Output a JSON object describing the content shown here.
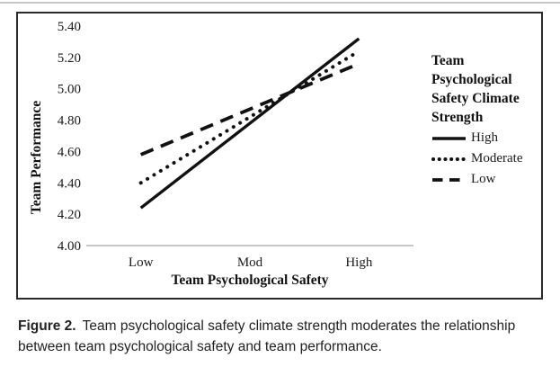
{
  "figure": {
    "caption_label": "Figure 2.",
    "caption_text": "Team psychological safety climate strength moderates the relationship between team psychological safety and team performance."
  },
  "chart_data": {
    "type": "line",
    "title": "",
    "xlabel": "Team Psychological Safety",
    "ylabel": "Team Performance",
    "categories": [
      "Low",
      "Mod",
      "High"
    ],
    "y_ticks": [
      "4.00",
      "4.20",
      "4.40",
      "4.60",
      "4.80",
      "5.00",
      "5.20",
      "5.40"
    ],
    "ylim": [
      4.0,
      5.4
    ],
    "grid": false,
    "baseline_value": 4.0,
    "legend_position": "right",
    "legend_title_lines": [
      "Team",
      "Psychological",
      "Safety Climate",
      "Strength"
    ],
    "series": [
      {
        "name": "High",
        "line_style": "solid",
        "values": [
          4.24,
          4.78,
          5.32
        ]
      },
      {
        "name": "Moderate",
        "line_style": "dotted",
        "values": [
          4.4,
          4.82,
          5.24
        ]
      },
      {
        "name": "Low",
        "line_style": "dashed",
        "values": [
          4.58,
          4.87,
          5.16
        ]
      }
    ],
    "colors": {
      "line": "#111111",
      "baseline_axis": "#a6a6a6"
    }
  }
}
